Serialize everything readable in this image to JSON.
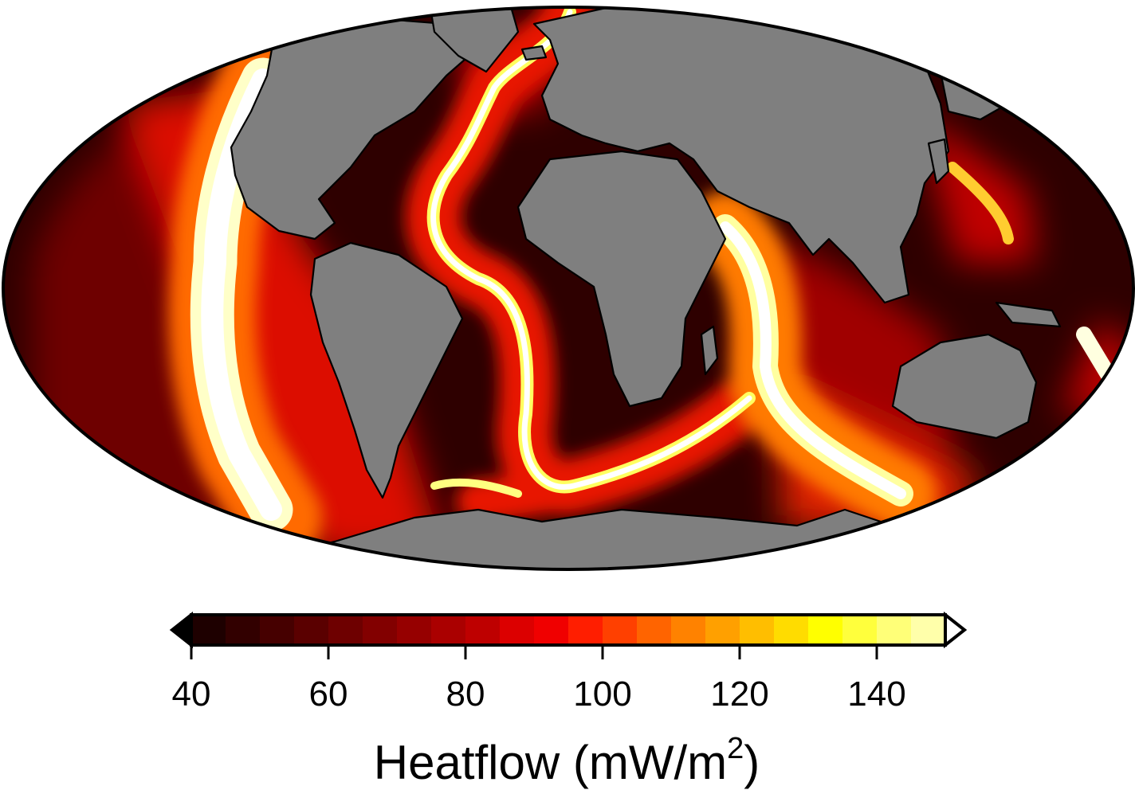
{
  "map": {
    "projection": "Mollweide (global)",
    "land_color": "#7f7f7f",
    "coastline_color": "#000000",
    "ocean_field": "ocean-floor heat flow, high along mid-ocean ridges, low on old sea floor"
  },
  "colorbar": {
    "min": 40,
    "max": 150,
    "step": 5,
    "extend": "both",
    "tick_labels": [
      "40",
      "60",
      "80",
      "100",
      "120",
      "140"
    ],
    "tick_values": [
      40,
      60,
      80,
      100,
      120,
      140
    ],
    "label_main": "Heatflow (mW/m",
    "label_sup": "2",
    "label_close": ")",
    "colors": [
      "#000000",
      "#1e0000",
      "#320000",
      "#460000",
      "#5a0000",
      "#6e0000",
      "#820000",
      "#960000",
      "#aa0000",
      "#be0000",
      "#dc0000",
      "#f00000",
      "#ff1e00",
      "#ff4000",
      "#ff6400",
      "#ff8200",
      "#ffa000",
      "#ffbe00",
      "#ffdc00",
      "#ffff00",
      "#ffff3c",
      "#ffff78",
      "#ffffaa",
      "#ffffdc",
      "#ffffff"
    ]
  }
}
